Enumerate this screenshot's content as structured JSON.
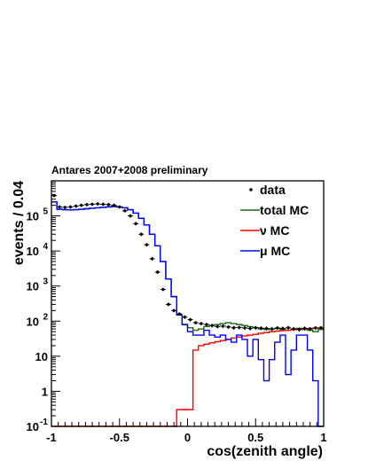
{
  "chart_data": {
    "type": "histogram",
    "title": "Antares 2007+2008 preliminary",
    "xlabel": "cos(zenith angle)",
    "ylabel": "events / 0.04",
    "xlim": [
      -1,
      1
    ],
    "ylim": [
      0.1,
      1000000
    ],
    "yscale": "log",
    "grid": false,
    "legend_position": "top-right",
    "bin_width": 0.04,
    "xticks": [
      {
        "v": -1,
        "label": "-1"
      },
      {
        "v": -0.5,
        "label": "-0.5"
      },
      {
        "v": 0,
        "label": "0"
      },
      {
        "v": 0.5,
        "label": "0.5"
      },
      {
        "v": 1,
        "label": "1"
      }
    ],
    "yticks": [
      {
        "v": 0.1,
        "base": "10",
        "exp": "-1"
      },
      {
        "v": 1,
        "base": "1",
        "exp": ""
      },
      {
        "v": 10,
        "base": "10",
        "exp": ""
      },
      {
        "v": 100,
        "base": "10",
        "exp": "2"
      },
      {
        "v": 1000,
        "base": "10",
        "exp": "3"
      },
      {
        "v": 10000,
        "base": "10",
        "exp": "4"
      },
      {
        "v": 100000,
        "base": "10",
        "exp": "5"
      }
    ],
    "legend": [
      {
        "label": "data",
        "style": "marker",
        "color": "#000000"
      },
      {
        "label": "total MC",
        "style": "line",
        "color": "#1a6b1a"
      },
      {
        "label": "ν MC",
        "style": "line",
        "color": "#ff0000"
      },
      {
        "label": "μ MC",
        "style": "line",
        "color": "#0000ff"
      }
    ],
    "series": [
      {
        "name": "total MC",
        "color": "#1a6b1a",
        "values": [
          250000,
          155000,
          150000,
          148000,
          150000,
          155000,
          160000,
          165000,
          170000,
          175000,
          180000,
          185000,
          180000,
          170000,
          150000,
          120000,
          85000,
          55000,
          30000,
          14000,
          5000,
          1600,
          500,
          150,
          80,
          65,
          55,
          60,
          70,
          75,
          80,
          85,
          90,
          85,
          80,
          75,
          70,
          65,
          60,
          58,
          60,
          62,
          58,
          55,
          60,
          62,
          58,
          55,
          50,
          58
        ]
      },
      {
        "name": "ν MC",
        "color": "#ff0000",
        "values": [
          0.1,
          0.1,
          0.1,
          0.1,
          0.1,
          0.1,
          0.1,
          0.1,
          0.1,
          0.1,
          0.1,
          0.1,
          0.1,
          0.1,
          0.1,
          0.1,
          0.1,
          0.1,
          0.1,
          0.1,
          0.1,
          0.1,
          0.1,
          0.3,
          0.3,
          0.3,
          15,
          20,
          22,
          24,
          26,
          28,
          30,
          33,
          35,
          38,
          40,
          42,
          45,
          47,
          50,
          52,
          54,
          55,
          57,
          58,
          60,
          62,
          63,
          63
        ]
      },
      {
        "name": "μ MC",
        "color": "#0000ff",
        "values": [
          250000,
          155000,
          150000,
          148000,
          150000,
          155000,
          160000,
          165000,
          170000,
          175000,
          180000,
          185000,
          180000,
          170000,
          150000,
          120000,
          85000,
          55000,
          30000,
          14000,
          5000,
          1600,
          500,
          150,
          80,
          50,
          40,
          40,
          55,
          40,
          35,
          40,
          30,
          25,
          40,
          30,
          10,
          30,
          8,
          2,
          8,
          25,
          40,
          3,
          15,
          40,
          40,
          15,
          2,
          0.1
        ]
      },
      {
        "name": "data",
        "color": "#000000",
        "values": [
          380000,
          180000,
          175000,
          180000,
          190000,
          200000,
          210000,
          215000,
          220000,
          215000,
          210000,
          200000,
          180000,
          140000,
          100000,
          60000,
          30000,
          15000,
          6000,
          2500,
          800,
          300,
          200,
          160,
          130,
          110,
          90,
          85,
          80,
          75,
          70,
          72,
          68,
          65,
          66,
          64,
          62,
          65,
          63,
          62,
          60,
          64,
          62,
          65,
          60,
          58,
          62,
          60,
          64,
          65
        ]
      }
    ]
  }
}
